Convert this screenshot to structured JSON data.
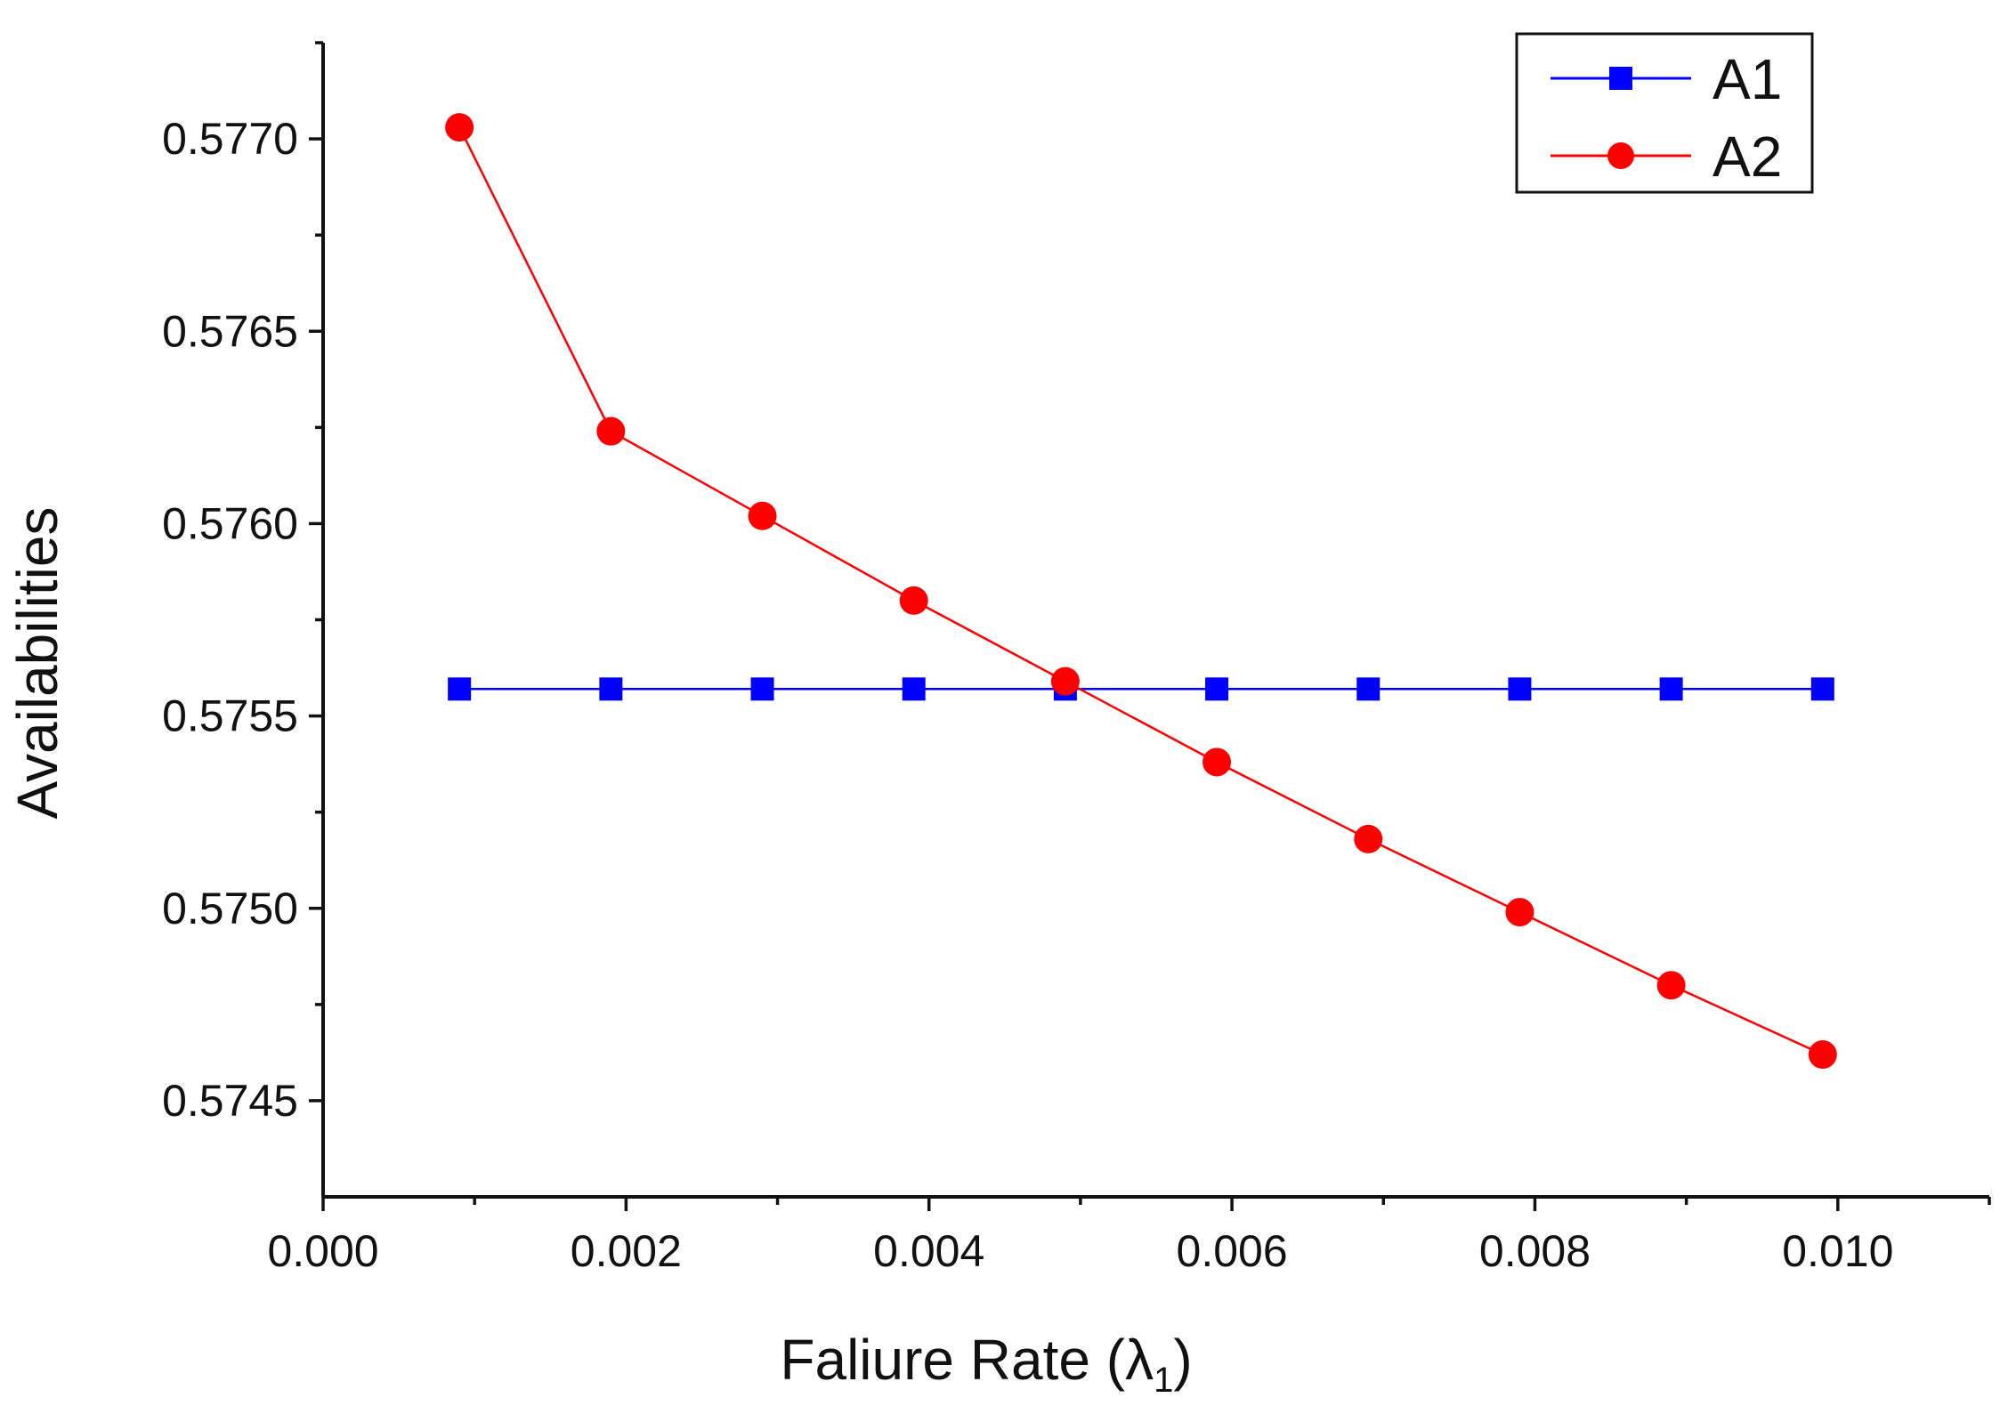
{
  "chart_data": {
    "type": "line",
    "title": "",
    "xlabel": "Faliure Rate (λ",
    "xlabel_subscript": "1",
    "xlabel_close": ")",
    "ylabel": "Availabilities",
    "xlim": [
      0.0,
      0.011
    ],
    "ylim": [
      0.57425,
      0.57725
    ],
    "x_ticks": [
      0.0,
      0.002,
      0.004,
      0.006,
      0.008,
      0.01
    ],
    "x_tick_labels": [
      "0.000",
      "0.002",
      "0.004",
      "0.006",
      "0.008",
      "0.010"
    ],
    "x_minor_ticks": [
      0.001,
      0.003,
      0.005,
      0.007,
      0.009,
      0.011
    ],
    "y_ticks": [
      0.5745,
      0.575,
      0.5755,
      0.576,
      0.5765,
      0.577
    ],
    "y_tick_labels": [
      "0.5745",
      "0.5750",
      "0.5755",
      "0.5760",
      "0.5765",
      "0.5770"
    ],
    "y_minor_ticks": [
      0.57475,
      0.57525,
      0.57575,
      0.57625,
      0.57675,
      0.57725
    ],
    "grid": false,
    "legend_position": "top-right",
    "x": [
      0.0009,
      0.0019,
      0.0029,
      0.0039,
      0.0049,
      0.0059,
      0.0069,
      0.0079,
      0.0089,
      0.0099
    ],
    "series": [
      {
        "name": "A1",
        "marker": "square",
        "color": "#0000ff",
        "values": [
          0.57557,
          0.57557,
          0.57557,
          0.57557,
          0.57557,
          0.57557,
          0.57557,
          0.57557,
          0.57557,
          0.57557
        ]
      },
      {
        "name": "A2",
        "marker": "circle",
        "color": "#ff0000",
        "values": [
          0.57703,
          0.57624,
          0.57602,
          0.5758,
          0.57559,
          0.57538,
          0.57518,
          0.57499,
          0.5748,
          0.57462
        ]
      }
    ]
  }
}
